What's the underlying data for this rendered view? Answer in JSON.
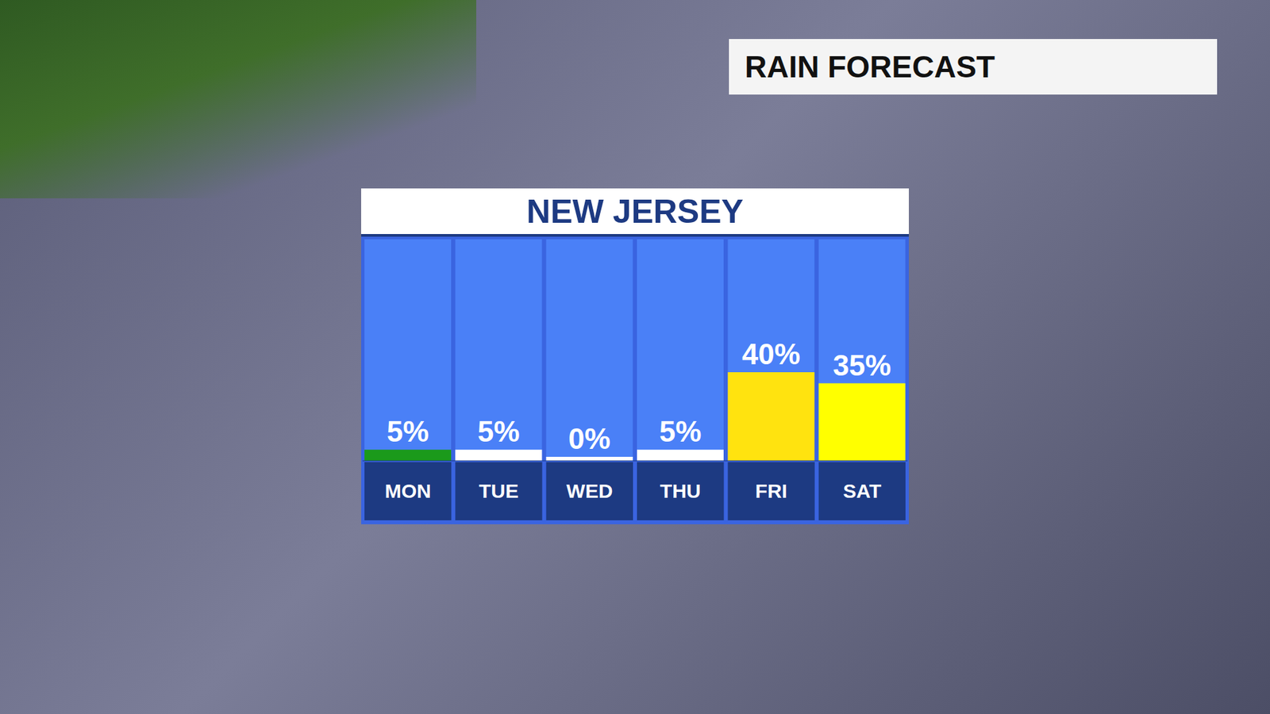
{
  "chart_data": {
    "type": "bar",
    "title": "NEW JERSEY",
    "subtitle": "RAIN FORECAST",
    "categories": [
      "MON",
      "TUE",
      "WED",
      "THU",
      "FRI",
      "SAT"
    ],
    "values": [
      5,
      5,
      0,
      5,
      40,
      35
    ],
    "value_labels": [
      "5%",
      "5%",
      "0%",
      "5%",
      "40%",
      "35%"
    ],
    "colors": [
      "#1b9a1b",
      "#ffffff",
      "#ffffff",
      "#ffffff",
      "#ffe30f",
      "#ffff00"
    ],
    "ylim": [
      0,
      100
    ],
    "tick_labels": false,
    "data_labels": true
  }
}
